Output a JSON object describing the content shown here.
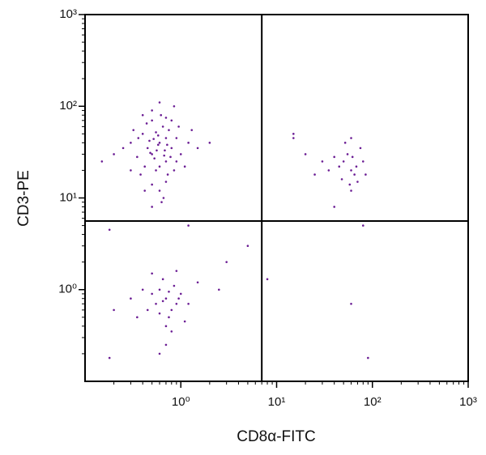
{
  "chart_data": {
    "type": "scatter",
    "x_label": "CD8α-FITC",
    "y_label": "CD3-PE",
    "color": "#6b1d94",
    "log": true,
    "xlim": [
      0.1,
      1000
    ],
    "ylim": [
      0.1,
      1000
    ],
    "xticks": [
      {
        "value": 1,
        "label": "10⁰"
      },
      {
        "value": 10,
        "label": "10¹"
      },
      {
        "value": 100,
        "label": "10²"
      },
      {
        "value": 1000,
        "label": "10³"
      }
    ],
    "yticks": [
      {
        "value": 1,
        "label": "10⁰"
      },
      {
        "value": 10,
        "label": "10¹"
      },
      {
        "value": 100,
        "label": "10²"
      },
      {
        "value": 1000,
        "label": "10³"
      }
    ],
    "minor_ticks": [
      0.2,
      0.3,
      0.4,
      0.5,
      0.6,
      0.7,
      0.8,
      0.9,
      2,
      3,
      4,
      5,
      6,
      7,
      8,
      9,
      20,
      30,
      40,
      50,
      60,
      70,
      80,
      90,
      200,
      300,
      400,
      500,
      600,
      700,
      800,
      900
    ],
    "gate_x": 7,
    "gate_y": 5.6,
    "x": [
      0.5,
      0.6,
      0.7,
      0.4,
      0.8,
      0.55,
      0.65,
      0.45,
      0.9,
      0.35,
      0.7,
      0.5,
      0.6,
      0.3,
      1.0,
      0.75,
      0.42,
      0.58,
      0.68,
      0.85,
      0.25,
      1.2,
      0.5,
      0.62,
      0.38,
      0.47,
      0.72,
      0.53,
      0.66,
      0.44,
      0.8,
      0.9,
      0.32,
      0.56,
      0.6,
      0.7,
      1.5,
      0.2,
      0.5,
      0.78,
      0.63,
      0.4,
      0.95,
      0.55,
      0.48,
      0.73,
      1.1,
      0.36,
      0.58,
      0.67,
      0.15,
      2.0,
      0.85,
      0.5,
      0.6,
      0.3,
      1.3,
      0.42,
      0.7,
      0.52,
      60,
      50,
      70,
      55,
      65,
      45,
      80,
      60,
      40,
      75,
      58,
      52,
      68,
      35,
      85,
      62,
      48,
      20,
      30,
      15,
      25,
      60,
      0.7,
      0.6,
      0.8,
      0.5,
      0.9,
      0.65,
      0.75,
      0.55,
      1.0,
      0.45,
      0.85,
      0.7,
      0.6,
      0.95,
      0.4,
      1.2,
      0.5,
      0.8,
      0.3,
      0.7,
      1.5,
      0.35,
      0.65,
      0.9,
      0.2,
      0.6,
      2.5,
      0.18,
      1.1,
      0.75,
      5,
      3,
      1.2,
      8,
      60,
      90,
      80,
      40,
      0.18,
      15
    ],
    "y": [
      30,
      40,
      25,
      50,
      35,
      20,
      60,
      35,
      45,
      28,
      15,
      70,
      12,
      40,
      30,
      55,
      22,
      48,
      33,
      20,
      35,
      40,
      90,
      80,
      18,
      42,
      38,
      27,
      10,
      65,
      70,
      25,
      55,
      33,
      22,
      45,
      35,
      30,
      14,
      28,
      9,
      80,
      60,
      52,
      31,
      18,
      22,
      45,
      38,
      29,
      25,
      40,
      100,
      8,
      110,
      20,
      55,
      12,
      75,
      44,
      20,
      25,
      15,
      30,
      18,
      22,
      25,
      12,
      28,
      35,
      14,
      40,
      22,
      20,
      18,
      28,
      16,
      30,
      25,
      45,
      18,
      45,
      0.8,
      1.0,
      0.6,
      0.9,
      0.7,
      1.3,
      0.5,
      0.7,
      0.9,
      0.6,
      1.1,
      0.4,
      0.55,
      0.8,
      1.0,
      0.7,
      1.5,
      0.35,
      0.8,
      0.25,
      1.2,
      0.5,
      0.75,
      1.6,
      0.6,
      0.2,
      1.0,
      0.18,
      0.45,
      0.95,
      3,
      2,
      5,
      1.3,
      0.7,
      0.18,
      5,
      8,
      4.5,
      50
    ]
  }
}
